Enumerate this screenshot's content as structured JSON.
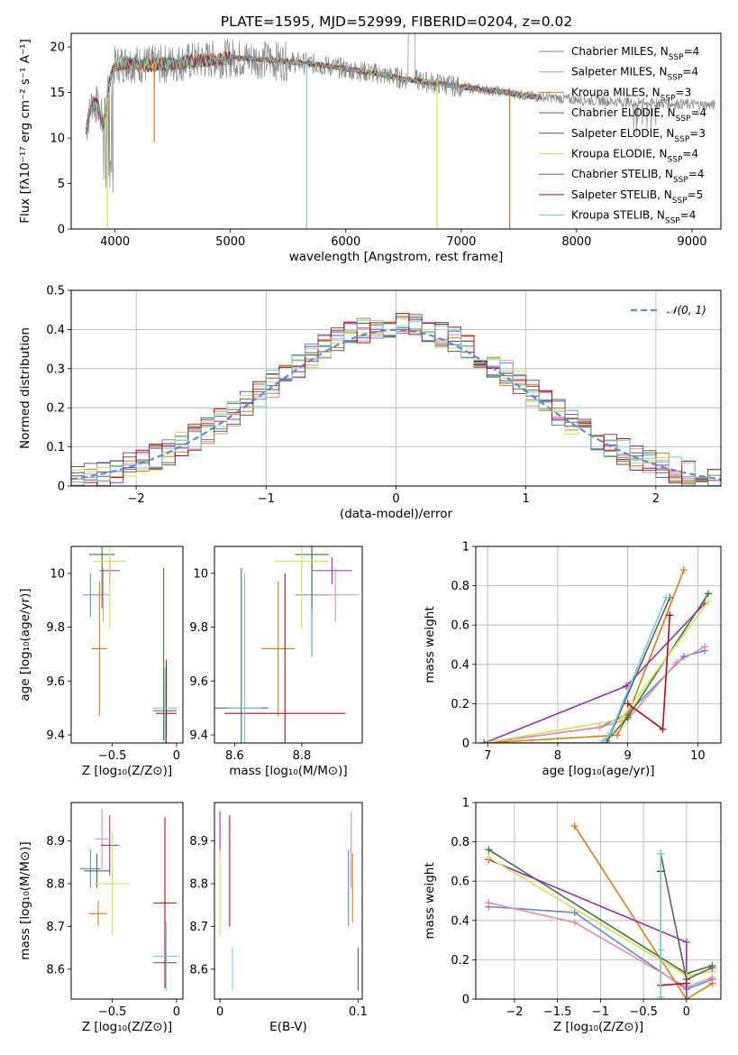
{
  "figure": {
    "title": "PLATE=1595, MJD=52999, FIBERID=0204, z=0.02"
  },
  "colors": {
    "Chabrier MILES": "#5b8bd6",
    "Salpeter MILES": "#e88aa8",
    "Kroupa MILES": "#e07a10",
    "Chabrier ELODIE": "#3a7a3a",
    "Salpeter ELODIE": "#9a30b0",
    "Kroupa ELODIE": "#d8e048",
    "Chabrier STELIB": "#606060",
    "Salpeter STELIB": "#b01010",
    "Kroupa STELIB": "#70d0d8"
  },
  "chart_data": [
    {
      "id": "spectrum",
      "type": "line",
      "xlabel": "wavelength [Angstrom, rest frame]",
      "ylabel": "Flux [fλ10⁻¹⁷ erg cm⁻² s⁻¹ A⁻¹]",
      "xlim": [
        3620,
        9250
      ],
      "ylim": [
        0,
        21.5
      ],
      "xticks": [
        4000,
        5000,
        6000,
        7000,
        8000,
        9000
      ],
      "yticks": [
        0,
        5,
        10,
        15,
        20
      ],
      "grid": false,
      "legend_position": "top-right",
      "legend": [
        {
          "label": "Chabrier MILES, N",
          "n": "4"
        },
        {
          "label": "Salpeter MILES, N",
          "n": "4"
        },
        {
          "label": "Kroupa MILES, N",
          "n": "3"
        },
        {
          "label": "Chabrier ELODIE, N",
          "n": "4"
        },
        {
          "label": "Salpeter ELODIE, N",
          "n": "3"
        },
        {
          "label": "Kroupa ELODIE, N",
          "n": "4"
        },
        {
          "label": "Chabrier STELIB, N",
          "n": "4"
        },
        {
          "label": "Salpeter STELIB, N",
          "n": "5"
        },
        {
          "label": "Kroupa STELIB, N",
          "n": "4"
        }
      ],
      "continuum_wavelength": [
        3750,
        3800,
        3850,
        3900,
        3950,
        4000,
        4100,
        4300,
        4500,
        4800,
        5000,
        5200,
        5500,
        5800,
        6000,
        6300,
        6500,
        6800,
        7000,
        7200,
        7400,
        7600,
        7800,
        8000,
        8200,
        8500,
        8800,
        9000,
        9200
      ],
      "continuum_flux": [
        11.0,
        14.0,
        13.5,
        11.5,
        16.0,
        18.0,
        18.3,
        18.0,
        18.2,
        18.6,
        18.8,
        18.7,
        18.4,
        18.0,
        17.6,
        17.0,
        16.5,
        16.0,
        15.6,
        15.3,
        15.0,
        14.6,
        14.4,
        14.2,
        14.1,
        13.9,
        13.8,
        13.7,
        13.6
      ],
      "dips": [
        {
          "x": 3933,
          "y": 0.2
        },
        {
          "x": 4340,
          "y": 9.5
        },
        {
          "x": 5660,
          "y": 0.0
        },
        {
          "x": 6790,
          "y": 0.0
        },
        {
          "x": 7420,
          "y": 0.0
        }
      ]
    },
    {
      "id": "residuals",
      "type": "histogram",
      "xlabel": "(data-model)/error",
      "ylabel": "Normed distribution",
      "xlim": [
        -2.5,
        2.5
      ],
      "ylim": [
        0,
        0.5
      ],
      "xticks": [
        -2,
        -1,
        0,
        1,
        2
      ],
      "yticks": [
        0.0,
        0.1,
        0.2,
        0.3,
        0.4,
        0.5
      ],
      "grid": true,
      "legend_position": "top-right",
      "reference_label": "𝒩(0, 1)",
      "bin_width": 0.1
    },
    {
      "id": "age-vs-Z",
      "type": "scatter",
      "xlabel": "Z [log₁₀(Z/Z⊙)]",
      "ylabel": "age  [log₁₀(age/yr)]",
      "xlim": [
        -0.82,
        0.05
      ],
      "ylim": [
        9.37,
        10.1
      ],
      "xticks": [
        -0.5,
        0.0
      ],
      "yticks": [
        9.4,
        9.6,
        9.8,
        10.0
      ],
      "points": [
        {
          "model": "Chabrier MILES",
          "x": -0.67,
          "y": 9.92,
          "xerr": 0.06,
          "yerr": 0.08
        },
        {
          "model": "Salpeter MILES",
          "x": -0.57,
          "y": 9.92,
          "xerr": 0.05,
          "yerr": 0.1
        },
        {
          "model": "Kroupa MILES",
          "x": -0.6,
          "y": 9.72,
          "xerr": 0.06,
          "yerr": 0.25
        },
        {
          "model": "Chabrier ELODIE",
          "x": -0.58,
          "y": 10.07,
          "xerr": 0.1,
          "yerr": 0.2
        },
        {
          "model": "Salpeter ELODIE",
          "x": -0.52,
          "y": 10.01,
          "xerr": 0.08,
          "yerr": 0.05
        },
        {
          "model": "Kroupa ELODIE",
          "x": -0.52,
          "y": 10.045,
          "xerr": 0.12,
          "yerr": 0.25
        },
        {
          "model": "Chabrier STELIB",
          "x": -0.09,
          "y": 9.49,
          "xerr": 0.09,
          "yerr": 0.09
        },
        {
          "model": "Salpeter STELIB",
          "x": -0.08,
          "y": 9.48,
          "xerr": 0.08,
          "yerr": 0.2
        },
        {
          "model": "Kroupa STELIB",
          "x": -0.09,
          "y": 9.5,
          "xerr": 0.1,
          "yerr": 0.15
        },
        {
          "model": "Chabrier ELODIE",
          "x": -0.1,
          "y": 9.7,
          "xerr": 0.0,
          "yerr": 0.32
        }
      ]
    },
    {
      "id": "age-vs-mass",
      "type": "scatter",
      "xlabel": "mass [log₁₀(M/M⊙)]",
      "ylabel": "",
      "xlim": [
        8.54,
        8.98
      ],
      "ylim": [
        9.37,
        10.1
      ],
      "xticks": [
        8.6,
        8.8
      ],
      "yticks": [
        9.4,
        9.6,
        9.8,
        10.0
      ],
      "points": [
        {
          "model": "Chabrier MILES",
          "x": 8.83,
          "y": 9.92,
          "xerr": 0.05,
          "yerr": 0.23
        },
        {
          "model": "Salpeter MILES",
          "x": 8.9,
          "y": 9.92,
          "xerr": 0.07,
          "yerr": 0.1
        },
        {
          "model": "Kroupa MILES",
          "x": 8.73,
          "y": 9.72,
          "xerr": 0.05,
          "yerr": 0.25
        },
        {
          "model": "Chabrier ELODIE",
          "x": 8.83,
          "y": 10.07,
          "xerr": 0.05,
          "yerr": 0.2
        },
        {
          "model": "Salpeter ELODIE",
          "x": 8.89,
          "y": 10.01,
          "xerr": 0.06,
          "yerr": 0.05
        },
        {
          "model": "Kroupa ELODIE",
          "x": 8.8,
          "y": 10.045,
          "xerr": 0.08,
          "yerr": 0.25
        },
        {
          "model": "Chabrier STELIB",
          "x": 8.62,
          "y": 9.5,
          "xerr": 0.08,
          "yerr": 0.52
        },
        {
          "model": "Salpeter STELIB",
          "x": 8.75,
          "y": 9.48,
          "xerr": 0.18,
          "yerr": 0.52
        },
        {
          "model": "Kroupa STELIB",
          "x": 8.63,
          "y": 9.5,
          "xerr": 0.05,
          "yerr": 0.5
        }
      ]
    },
    {
      "id": "weight-vs-age",
      "type": "line",
      "xlabel": "age  [log₁₀(age/yr)]",
      "ylabel": "mass weight",
      "xlim": [
        6.83,
        10.33
      ],
      "ylim": [
        0,
        1
      ],
      "xticks": [
        7,
        8,
        9,
        10
      ],
      "yticks": [
        0.0,
        0.2,
        0.4,
        0.6,
        0.8,
        1.0
      ],
      "grid": true,
      "series": [
        {
          "model": "Chabrier MILES",
          "x": [
            6.95,
            8.6,
            9.0,
            9.8,
            10.1
          ],
          "y": [
            0.0,
            0.08,
            0.15,
            0.44,
            0.47
          ]
        },
        {
          "model": "Salpeter MILES",
          "x": [
            6.95,
            8.6,
            9.0,
            9.7,
            10.1
          ],
          "y": [
            0.0,
            0.08,
            0.12,
            0.41,
            0.49
          ]
        },
        {
          "model": "Kroupa MILES",
          "x": [
            6.95,
            8.85,
            9.0,
            9.8
          ],
          "y": [
            0.0,
            0.04,
            0.14,
            0.88
          ]
        },
        {
          "model": "Chabrier ELODIE",
          "x": [
            8.7,
            9.0,
            10.15
          ],
          "y": [
            0.01,
            0.13,
            0.76
          ]
        },
        {
          "model": "Salpeter ELODIE",
          "x": [
            6.95,
            8.98,
            10.1
          ],
          "y": [
            0.0,
            0.29,
            0.71
          ]
        },
        {
          "model": "Kroupa ELODIE",
          "x": [
            6.95,
            8.9,
            10.15
          ],
          "y": [
            0.0,
            0.12,
            0.72
          ]
        },
        {
          "model": "Chabrier STELIB",
          "x": [
            6.95,
            8.7,
            9.6
          ],
          "y": [
            0.0,
            0.0,
            0.74
          ]
        },
        {
          "model": "Salpeter STELIB",
          "x": [
            9.0,
            9.5,
            9.6
          ],
          "y": [
            0.2,
            0.07,
            0.65
          ]
        },
        {
          "model": "Kroupa STELIB",
          "x": [
            8.65,
            8.75,
            9.55
          ],
          "y": [
            0.01,
            0.05,
            0.74
          ]
        }
      ]
    },
    {
      "id": "mass-vs-Z",
      "type": "scatter",
      "xlabel": "Z [log₁₀(Z/Z⊙)]",
      "ylabel": "mass [log₁₀(M/M⊙)]",
      "xlim": [
        -0.82,
        0.05
      ],
      "ylim": [
        8.53,
        8.99
      ],
      "xticks": [
        -0.5,
        0.0
      ],
      "yticks": [
        8.6,
        8.7,
        8.8,
        8.9
      ],
      "points": [
        {
          "model": "Chabrier MILES",
          "x": -0.67,
          "y": 8.835,
          "xerr": 0.08,
          "yerr": 0.045
        },
        {
          "model": "Salpeter MILES",
          "x": -0.58,
          "y": 8.905,
          "xerr": 0.05,
          "yerr": 0.07
        },
        {
          "model": "Kroupa MILES",
          "x": -0.61,
          "y": 8.73,
          "xerr": 0.07,
          "yerr": 0.03
        },
        {
          "model": "Chabrier ELODIE",
          "x": -0.62,
          "y": 8.83,
          "xerr": 0.1,
          "yerr": 0.04
        },
        {
          "model": "Salpeter ELODIE",
          "x": -0.52,
          "y": 8.89,
          "xerr": 0.07,
          "yerr": 0.07
        },
        {
          "model": "Kroupa ELODIE",
          "x": -0.5,
          "y": 8.8,
          "xerr": 0.14,
          "yerr": 0.12
        },
        {
          "model": "Chabrier STELIB",
          "x": -0.09,
          "y": 8.615,
          "xerr": 0.09,
          "yerr": 0.06
        },
        {
          "model": "Salpeter STELIB",
          "x": -0.09,
          "y": 8.755,
          "xerr": 0.09,
          "yerr": 0.2
        },
        {
          "model": "Kroupa STELIB",
          "x": -0.08,
          "y": 8.63,
          "xerr": 0.1,
          "yerr": 0.08
        }
      ]
    },
    {
      "id": "mass-vs-EBV",
      "type": "scatter",
      "xlabel": "E(B-V)",
      "ylabel": "",
      "xlim": [
        -0.004,
        0.103
      ],
      "ylim": [
        8.53,
        8.99
      ],
      "xticks": [
        0.0,
        0.1
      ],
      "yticks": [
        8.6,
        8.7,
        8.8,
        8.9
      ],
      "points": [
        {
          "model": "Chabrier MILES",
          "x": 0.093,
          "y": 8.79,
          "yerr": 0.09
        },
        {
          "model": "Salpeter MILES",
          "x": 0.095,
          "y": 8.88,
          "yerr": 0.09
        },
        {
          "model": "Kroupa MILES",
          "x": 0.096,
          "y": 8.79,
          "yerr": 0.08
        },
        {
          "model": "Salpeter ELODIE",
          "x": 0.0,
          "y": 8.92,
          "yerr": 0.05
        },
        {
          "model": "Kroupa ELODIE",
          "x": 0.0,
          "y": 8.78,
          "yerr": 0.1
        },
        {
          "model": "Salpeter STELIB",
          "x": 0.007,
          "y": 8.83,
          "yerr": 0.13
        },
        {
          "model": "Kroupa STELIB",
          "x": 0.009,
          "y": 8.6,
          "yerr": 0.05
        },
        {
          "model": "Chabrier STELIB",
          "x": 0.1,
          "y": 8.6,
          "yerr": 0.05
        }
      ]
    },
    {
      "id": "weight-vs-Z",
      "type": "line",
      "xlabel": "Z [log₁₀(Z/Z⊙)]",
      "ylabel": "mass weight",
      "xlim": [
        -2.45,
        0.4
      ],
      "ylim": [
        0,
        1
      ],
      "xticks": [
        -2.0,
        -1.5,
        -1.0,
        -0.5,
        0.0
      ],
      "yticks": [
        0.0,
        0.2,
        0.4,
        0.6,
        0.8,
        1.0
      ],
      "grid": true,
      "series": [
        {
          "model": "Chabrier MILES",
          "x": [
            -2.3,
            -1.3,
            0.0,
            0.3
          ],
          "y": [
            0.47,
            0.44,
            0.05,
            0.1
          ]
        },
        {
          "model": "Salpeter MILES",
          "x": [
            -2.3,
            -1.3,
            0.0,
            0.3
          ],
          "y": [
            0.49,
            0.39,
            0.06,
            0.11
          ]
        },
        {
          "model": "Kroupa MILES",
          "x": [
            -1.3,
            0.0,
            0.3
          ],
          "y": [
            0.88,
            0.0,
            0.08
          ]
        },
        {
          "model": "Chabrier ELODIE",
          "x": [
            -2.3,
            0.0,
            0.3
          ],
          "y": [
            0.76,
            0.13,
            0.17
          ]
        },
        {
          "model": "Salpeter ELODIE",
          "x": [
            -2.3,
            0.0,
            0.0
          ],
          "y": [
            0.71,
            0.29,
            0.0
          ]
        },
        {
          "model": "Kroupa ELODIE",
          "x": [
            -2.3,
            0.0,
            0.3
          ],
          "y": [
            0.72,
            0.12,
            0.14
          ]
        },
        {
          "model": "Chabrier STELIB",
          "x": [
            -0.3,
            0.0,
            0.3
          ],
          "y": [
            0.74,
            0.1,
            0.16
          ]
        },
        {
          "model": "Salpeter STELIB",
          "x": [
            -0.3,
            -0.3,
            0.0
          ],
          "y": [
            0.65,
            0.07,
            0.08
          ]
        },
        {
          "model": "Kroupa STELIB",
          "x": [
            -0.3,
            -0.3,
            -0.3
          ],
          "y": [
            0.74,
            0.25,
            0.01
          ]
        }
      ]
    }
  ]
}
